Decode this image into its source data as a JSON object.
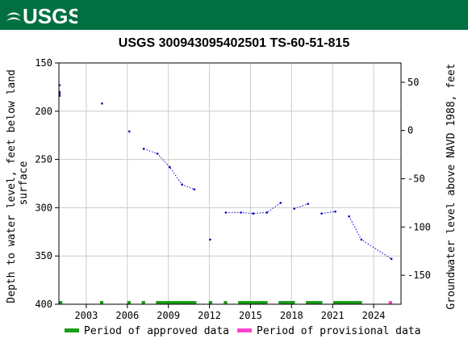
{
  "header": {
    "logo_text": "USGS",
    "brand_color": "#006f41"
  },
  "chart_data": {
    "type": "scatter",
    "title": "USGS 300943095402501 TS-60-51-815",
    "ylabel_left": "Depth to water level, feet below land surface",
    "ylabel_left_lines": [
      "Depth to water level, feet below land",
      "surface"
    ],
    "ylabel_right": "Groundwater level above NAVD 1988, feet",
    "x_range": [
      2001.0,
      2026.0
    ],
    "x_ticks": [
      2003,
      2006,
      2009,
      2012,
      2015,
      2018,
      2021,
      2024
    ],
    "y_left_range": [
      150,
      400
    ],
    "y_left_ticks": [
      150,
      200,
      250,
      300,
      350,
      400
    ],
    "y_left_inverted": true,
    "y_right_ticks": [
      50,
      0,
      -50,
      -100,
      -150
    ],
    "y_right_offset": 220,
    "grid": true,
    "series": [
      {
        "name": "Depth to water level",
        "color": "#0000cc",
        "points": [
          {
            "x": 2001.05,
            "y": 173
          },
          {
            "x": 2001.05,
            "y": 180
          },
          {
            "x": 2001.05,
            "y": 182
          },
          {
            "x": 2001.05,
            "y": 184
          },
          {
            "x": 2004.15,
            "y": 192
          },
          {
            "x": 2006.15,
            "y": 221
          },
          {
            "x": 2007.2,
            "y": 239
          },
          {
            "x": 2008.2,
            "y": 244
          },
          {
            "x": 2009.1,
            "y": 258
          },
          {
            "x": 2010.0,
            "y": 276
          },
          {
            "x": 2010.9,
            "y": 281
          },
          {
            "x": 2012.05,
            "y": 333
          },
          {
            "x": 2013.2,
            "y": 305
          },
          {
            "x": 2014.3,
            "y": 305
          },
          {
            "x": 2015.2,
            "y": 306
          },
          {
            "x": 2016.2,
            "y": 305
          },
          {
            "x": 2017.2,
            "y": 295
          },
          {
            "x": 2018.2,
            "y": 301
          },
          {
            "x": 2019.2,
            "y": 296
          },
          {
            "x": 2020.2,
            "y": 306
          },
          {
            "x": 2021.2,
            "y": 304
          },
          {
            "x": 2022.2,
            "y": 309
          },
          {
            "x": 2023.1,
            "y": 333
          },
          {
            "x": 2025.3,
            "y": 353
          }
        ],
        "dotted_segments": [
          [
            6,
            10
          ],
          [
            12,
            16
          ],
          [
            17,
            18
          ],
          [
            19,
            20
          ],
          [
            21,
            23
          ]
        ]
      }
    ],
    "approved_periods": [
      [
        2001.0,
        2001.25
      ],
      [
        2004.0,
        2004.25
      ],
      [
        2006.0,
        2006.25
      ],
      [
        2007.05,
        2007.3
      ],
      [
        2008.1,
        2011.05
      ],
      [
        2011.95,
        2012.2
      ],
      [
        2013.05,
        2013.3
      ],
      [
        2014.1,
        2016.25
      ],
      [
        2017.05,
        2018.25
      ],
      [
        2019.05,
        2020.25
      ],
      [
        2021.05,
        2023.15
      ]
    ],
    "provisional_periods": [
      [
        2025.1,
        2025.35
      ]
    ],
    "approved_color": "#1a9e1a",
    "provisional_color": "#ff44cc",
    "legend": {
      "placement": "bottom",
      "approved_label": "Period of approved data",
      "provisional_label": "Period of provisional data"
    }
  }
}
